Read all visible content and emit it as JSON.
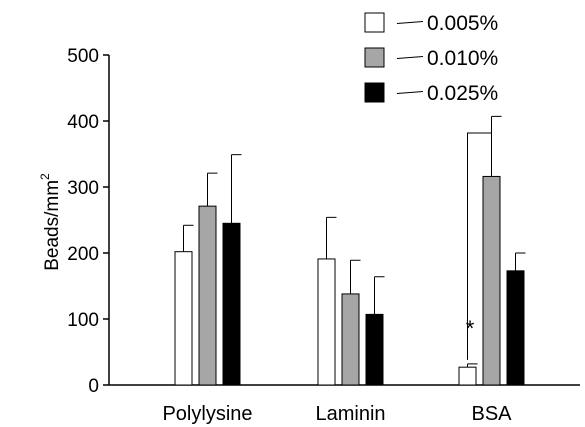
{
  "chart_data": {
    "type": "bar",
    "categories": [
      "Polylysine",
      "Laminin",
      "BSA"
    ],
    "series": [
      {
        "name": "0.005%",
        "color": "#ffffff",
        "values": [
          202,
          191,
          27
        ],
        "errors": [
          40,
          63,
          5
        ]
      },
      {
        "name": "0.010%",
        "color": "#a6a6a6",
        "values": [
          271,
          138,
          316
        ],
        "errors": [
          50,
          51,
          91
        ]
      },
      {
        "name": "0.025%",
        "color": "#000000",
        "values": [
          245,
          107,
          173
        ],
        "errors": [
          104,
          57,
          27
        ]
      }
    ],
    "ylabel": "Beads/mm",
    "ylabel_superscript": "2",
    "ylim": [
      0,
      500
    ],
    "yticks": [
      0,
      100,
      200,
      300,
      400,
      500
    ],
    "legend_position": "top-right",
    "grid": false,
    "annotation": {
      "text": "*",
      "category": "BSA",
      "between_series": [
        "0.005%",
        "0.010%"
      ]
    }
  }
}
